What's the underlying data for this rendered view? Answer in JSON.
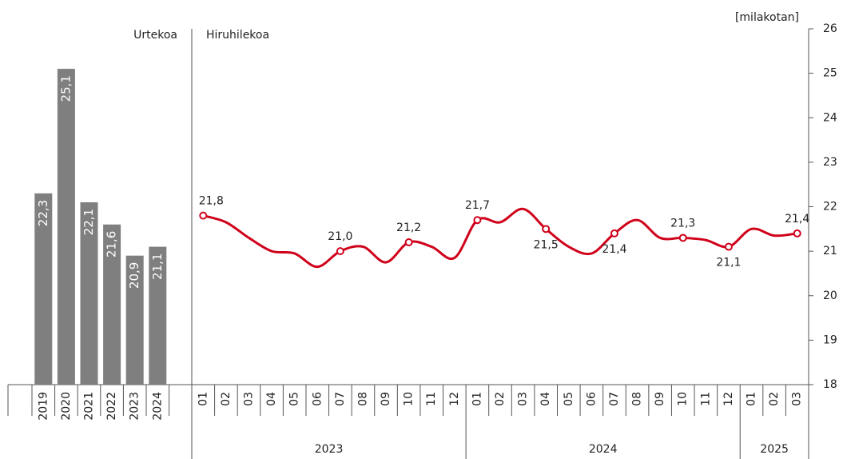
{
  "chart_data": [
    {
      "type": "bar",
      "title": "Urtekoa",
      "categories": [
        "2019",
        "2020",
        "2021",
        "2022",
        "2023",
        "2024"
      ],
      "values": [
        22.3,
        25.1,
        22.1,
        21.6,
        20.9,
        21.1
      ],
      "value_labels": [
        "22,3",
        "25,1",
        "22,1",
        "21,6",
        "20,9",
        "21,1"
      ],
      "color": "#7f7f7f",
      "ylim": [
        18,
        26
      ]
    },
    {
      "type": "line",
      "title": "Hiruhilekoa",
      "ylabel": "[milakotan]",
      "categories": [
        "01",
        "02",
        "03",
        "04",
        "05",
        "06",
        "07",
        "08",
        "09",
        "10",
        "11",
        "12",
        "01",
        "02",
        "03",
        "04",
        "05",
        "06",
        "07",
        "08",
        "09",
        "10",
        "11",
        "12",
        "01",
        "02",
        "03"
      ],
      "category_groups": [
        "2023",
        "2024",
        "2025"
      ],
      "series": [
        {
          "color": "#d0021b",
          "values": [
            21.8,
            21.65,
            21.3,
            21.0,
            20.95,
            20.65,
            21.0,
            21.1,
            20.75,
            21.2,
            21.1,
            20.85,
            21.7,
            21.65,
            21.95,
            21.5,
            21.1,
            20.95,
            21.4,
            21.7,
            21.3,
            21.3,
            21.25,
            21.1,
            21.5,
            21.35,
            21.4
          ],
          "value_labels": [
            "21,8",
            null,
            null,
            null,
            null,
            null,
            "21,0",
            null,
            null,
            "21,2",
            null,
            null,
            "21,7",
            null,
            null,
            "21,5",
            null,
            null,
            "21,4",
            null,
            null,
            "21,3",
            null,
            "21,1",
            null,
            null,
            "21,4"
          ]
        }
      ],
      "ylim": [
        18,
        26
      ],
      "yticks": [
        18,
        19,
        20,
        21,
        22,
        23,
        24,
        25,
        26
      ]
    }
  ]
}
